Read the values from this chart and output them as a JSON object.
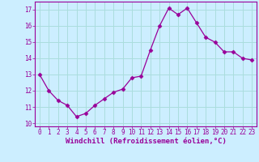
{
  "x": [
    0,
    1,
    2,
    3,
    4,
    5,
    6,
    7,
    8,
    9,
    10,
    11,
    12,
    13,
    14,
    15,
    16,
    17,
    18,
    19,
    20,
    21,
    22,
    23
  ],
  "y": [
    13.0,
    12.0,
    11.4,
    11.1,
    10.4,
    10.6,
    11.1,
    11.5,
    11.9,
    12.1,
    12.8,
    12.9,
    14.5,
    16.0,
    17.1,
    16.7,
    17.1,
    16.2,
    15.3,
    15.0,
    14.4,
    14.4,
    14.0,
    13.9
  ],
  "line_color": "#990099",
  "marker": "D",
  "marker_size": 2.5,
  "bg_color": "#cceeff",
  "grid_color": "#aadddd",
  "xlabel": "Windchill (Refroidissement éolien,°C)",
  "xlabel_color": "#990099",
  "tick_color": "#990099",
  "ylim": [
    9.8,
    17.5
  ],
  "xlim": [
    -0.5,
    23.5
  ],
  "yticks": [
    10,
    11,
    12,
    13,
    14,
    15,
    16,
    17
  ],
  "xticks": [
    0,
    1,
    2,
    3,
    4,
    5,
    6,
    7,
    8,
    9,
    10,
    11,
    12,
    13,
    14,
    15,
    16,
    17,
    18,
    19,
    20,
    21,
    22,
    23
  ],
  "tick_fontsize": 5.5,
  "xlabel_fontsize": 6.5
}
